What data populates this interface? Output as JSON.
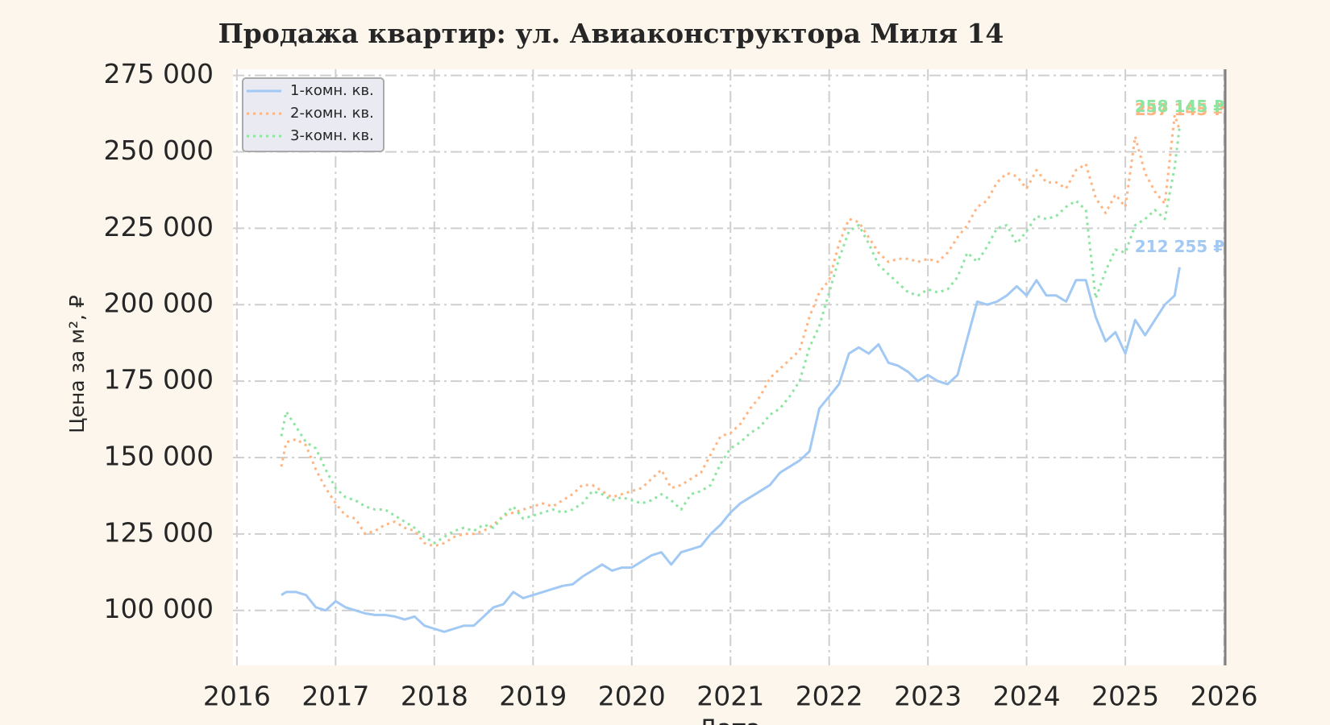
{
  "chart_data": {
    "type": "line",
    "title": "Продажа квартир: ул. Авиаконструктора Миля 14",
    "xlabel": "Дата",
    "ylabel": "Цена за м², ₽",
    "x": [
      2016.45,
      2016.5,
      2016.6,
      2016.7,
      2016.8,
      2016.9,
      2017.0,
      2017.1,
      2017.2,
      2017.3,
      2017.4,
      2017.5,
      2017.6,
      2017.7,
      2017.8,
      2017.9,
      2018.0,
      2018.1,
      2018.2,
      2018.3,
      2018.4,
      2018.5,
      2018.6,
      2018.7,
      2018.8,
      2018.9,
      2019.0,
      2019.1,
      2019.2,
      2019.3,
      2019.4,
      2019.5,
      2019.6,
      2019.7,
      2019.8,
      2019.9,
      2020.0,
      2020.1,
      2020.2,
      2020.3,
      2020.4,
      2020.5,
      2020.6,
      2020.7,
      2020.8,
      2020.9,
      2021.0,
      2021.1,
      2021.2,
      2021.3,
      2021.4,
      2021.5,
      2021.6,
      2021.7,
      2021.8,
      2021.9,
      2022.0,
      2022.1,
      2022.2,
      2022.3,
      2022.4,
      2022.5,
      2022.6,
      2022.7,
      2022.8,
      2022.9,
      2023.0,
      2023.1,
      2023.2,
      2023.3,
      2023.4,
      2023.5,
      2023.6,
      2023.7,
      2023.8,
      2023.9,
      2024.0,
      2024.1,
      2024.2,
      2024.3,
      2024.4,
      2024.5,
      2024.6,
      2024.7,
      2024.8,
      2024.9,
      2025.0,
      2025.1,
      2025.2,
      2025.3,
      2025.4,
      2025.5,
      2025.55
    ],
    "series": [
      {
        "name": "1-комн. кв.",
        "color": "#a1c9f4",
        "style": "solid",
        "end_label": "212 255 ₽",
        "values": [
          105000,
          106000,
          106000,
          105000,
          101000,
          100000,
          103000,
          101000,
          100000,
          99000,
          98500,
          98500,
          98000,
          97000,
          98000,
          95000,
          94000,
          93000,
          94000,
          95000,
          95000,
          98000,
          101000,
          102000,
          106000,
          104000,
          105000,
          106000,
          107000,
          108000,
          108500,
          111000,
          113000,
          115000,
          113000,
          114000,
          114000,
          116000,
          118000,
          119000,
          115000,
          119000,
          120000,
          121000,
          125000,
          128000,
          132000,
          135000,
          137000,
          139000,
          141000,
          145000,
          147000,
          149000,
          152000,
          166000,
          170000,
          174000,
          184000,
          186000,
          184000,
          187000,
          181000,
          180000,
          178000,
          175000,
          177000,
          175000,
          174000,
          177000,
          189000,
          201000,
          200000,
          201000,
          203000,
          206000,
          203000,
          208000,
          203000,
          203000,
          201000,
          208000,
          208000,
          196000,
          188000,
          191000,
          184000,
          195000,
          190000,
          195000,
          200000,
          203000,
          212255
        ]
      },
      {
        "name": "2-комн. кв.",
        "color": "#ffb482",
        "style": "dotted",
        "end_label": "257 145 ₽",
        "values": [
          147000,
          155000,
          156000,
          154000,
          146000,
          140000,
          135000,
          131000,
          130000,
          125000,
          126000,
          128000,
          129000,
          127000,
          126000,
          122000,
          121000,
          122000,
          124000,
          125000,
          125000,
          126000,
          128000,
          131000,
          132000,
          133000,
          134000,
          135000,
          134000,
          136000,
          138000,
          141000,
          141000,
          139000,
          137000,
          138000,
          139000,
          140000,
          143000,
          146000,
          140000,
          141000,
          143000,
          145000,
          151000,
          157000,
          158000,
          161000,
          166000,
          170000,
          176000,
          179000,
          182000,
          185000,
          196000,
          204000,
          208000,
          220000,
          228000,
          227000,
          222000,
          217000,
          214000,
          215000,
          215000,
          214000,
          215000,
          214000,
          217000,
          222000,
          226000,
          232000,
          234000,
          240000,
          243000,
          242000,
          238000,
          244000,
          240000,
          240000,
          238000,
          244000,
          246000,
          235000,
          230000,
          236000,
          232000,
          255000,
          243000,
          237000,
          233000,
          262000,
          257145
        ]
      },
      {
        "name": "3-комн. кв.",
        "color": "#8de5a1",
        "style": "dotted",
        "end_label": "258 145 ₽",
        "values": [
          157000,
          165000,
          160000,
          155000,
          153000,
          146000,
          140000,
          137000,
          136000,
          134000,
          133000,
          133000,
          131000,
          129000,
          127000,
          124000,
          122000,
          124000,
          126000,
          127000,
          126000,
          128000,
          127000,
          131000,
          134000,
          130000,
          131000,
          132000,
          133000,
          132000,
          133000,
          135000,
          139000,
          138000,
          136000,
          137000,
          136000,
          135000,
          136000,
          138000,
          136000,
          133000,
          138000,
          139000,
          141000,
          148000,
          153000,
          155000,
          158000,
          160000,
          164000,
          166000,
          170000,
          175000,
          186000,
          193000,
          204000,
          215000,
          224000,
          226000,
          220000,
          213000,
          210000,
          207000,
          204000,
          203000,
          205000,
          204000,
          205000,
          209000,
          217000,
          214000,
          219000,
          225000,
          226000,
          220000,
          224000,
          229000,
          228000,
          229000,
          232000,
          234000,
          231000,
          202000,
          211000,
          218000,
          217000,
          226000,
          228000,
          231000,
          228000,
          245000,
          258145
        ]
      }
    ],
    "xlim": [
      2015.96,
      2026.02
    ],
    "xticks": [
      2016,
      2017,
      2018,
      2019,
      2020,
      2021,
      2022,
      2023,
      2024,
      2025,
      2026
    ],
    "ylim": [
      82000,
      277000
    ],
    "yticks": [
      {
        "value": 100000,
        "label": "100 000"
      },
      {
        "value": 125000,
        "label": "125 000"
      },
      {
        "value": 150000,
        "label": "150 000"
      },
      {
        "value": 175000,
        "label": "175 000"
      },
      {
        "value": 200000,
        "label": "200 000"
      },
      {
        "value": 225000,
        "label": "225 000"
      },
      {
        "value": 250000,
        "label": "250 000"
      },
      {
        "value": 275000,
        "label": "275 000"
      }
    ],
    "grid": true,
    "legend": "upper-left"
  }
}
